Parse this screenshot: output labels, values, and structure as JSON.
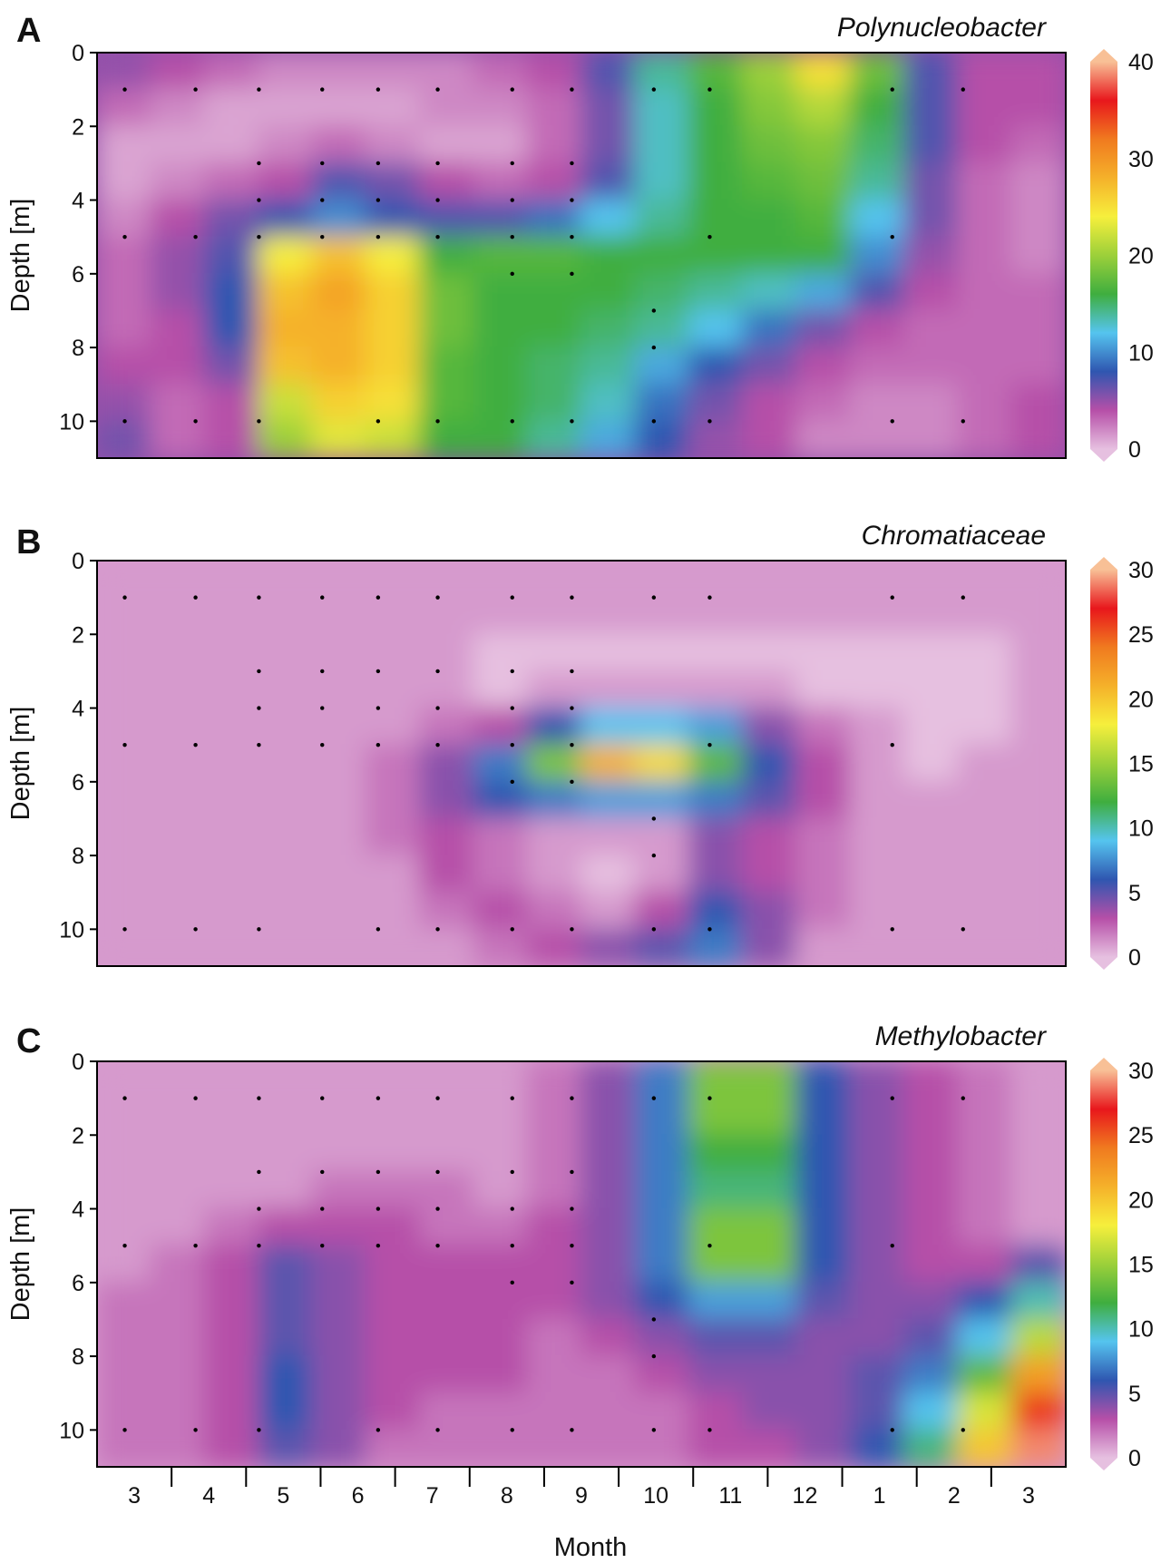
{
  "chart_data": {
    "type": "heatmap",
    "xlabel": "Month",
    "month_ticks": [
      "3",
      "4",
      "5",
      "6",
      "7",
      "8",
      "9",
      "10",
      "11",
      "12",
      "1",
      "2",
      "3"
    ],
    "sample_dates": [
      0.25,
      1.2,
      2.05,
      2.9,
      3.65,
      4.45,
      5.45,
      6.25,
      7.35,
      8.1,
      10.55,
      11.5
    ],
    "depth_range": [
      0,
      11
    ],
    "colormap": [
      "#e6c0e0",
      "#b64fa8",
      "#2f56b0",
      "#55c4ef",
      "#3fae3f",
      "#9cd03a",
      "#f6ef3c",
      "#f5b12a",
      "#f07a1f",
      "#e8171c",
      "#f8c096"
    ],
    "panels": [
      {
        "letter": "A",
        "organism": "Polynucleobacter",
        "ylabel": "Depth [m]",
        "y_ticks": [
          "0",
          "2",
          "4",
          "6",
          "8",
          "10"
        ],
        "colorbar_ticks": [
          "40",
          "30",
          "20",
          "10",
          "0"
        ],
        "vmax": 40,
        "sample_depths": [
          [
            1,
            5,
            10
          ],
          [
            1,
            5,
            10
          ],
          [
            1,
            3,
            4,
            5,
            10
          ],
          [
            1,
            3,
            4,
            5
          ],
          [
            1,
            3,
            4,
            5,
            10
          ],
          [
            1,
            3,
            4,
            5,
            10
          ],
          [
            1,
            3,
            4,
            5,
            6,
            10
          ],
          [
            1,
            3,
            4,
            5,
            6,
            10
          ],
          [
            1,
            7,
            8,
            10
          ],
          [
            1,
            5,
            10
          ],
          [
            1,
            5,
            10
          ],
          [
            1,
            10
          ]
        ],
        "grid": [
          [
            5,
            4,
            3,
            2,
            2,
            2,
            2,
            3,
            4,
            7,
            14,
            17,
            20,
            25,
            18,
            7,
            4,
            4
          ],
          [
            3,
            2,
            1,
            1,
            1,
            1,
            2,
            2,
            3,
            6,
            13,
            16,
            19,
            21,
            16,
            7,
            4,
            4
          ],
          [
            1,
            1,
            1,
            2,
            3,
            2,
            1,
            1,
            3,
            6,
            13,
            16,
            18,
            19,
            15,
            7,
            4,
            3
          ],
          [
            1,
            2,
            3,
            4,
            7,
            6,
            4,
            3,
            4,
            7,
            13,
            16,
            17,
            18,
            14,
            6,
            3,
            2
          ],
          [
            2,
            4,
            6,
            8,
            10,
            8,
            7,
            7,
            9,
            12,
            14,
            16,
            16,
            17,
            12,
            6,
            3,
            2
          ],
          [
            3,
            5,
            7,
            24,
            27,
            24,
            16,
            17,
            17,
            16,
            16,
            16,
            16,
            16,
            10,
            5,
            3,
            2
          ],
          [
            3,
            5,
            8,
            27,
            29,
            26,
            18,
            16,
            16,
            16,
            15,
            14,
            13,
            11,
            7,
            4,
            3,
            3
          ],
          [
            3,
            4,
            8,
            28,
            28,
            26,
            18,
            16,
            16,
            15,
            14,
            12,
            9,
            6,
            4,
            3,
            3,
            3
          ],
          [
            4,
            4,
            6,
            27,
            28,
            26,
            17,
            16,
            15,
            14,
            11,
            8,
            6,
            4,
            3,
            3,
            3,
            3
          ],
          [
            5,
            3,
            4,
            22,
            26,
            25,
            17,
            16,
            15,
            13,
            9,
            6,
            4,
            3,
            2,
            2,
            3,
            4
          ],
          [
            6,
            3,
            4,
            20,
            23,
            22,
            16,
            16,
            14,
            11,
            8,
            5,
            4,
            2,
            2,
            2,
            3,
            4
          ]
        ]
      },
      {
        "letter": "B",
        "organism": "Chromatiaceae",
        "ylabel": "Depth [m]",
        "y_ticks": [
          "0",
          "2",
          "4",
          "6",
          "8",
          "10"
        ],
        "colorbar_ticks": [
          "30",
          "25",
          "20",
          "15",
          "10",
          "5",
          "0"
        ],
        "vmax": 30,
        "sample_depths": [
          [
            1,
            5,
            10
          ],
          [
            1,
            5,
            10
          ],
          [
            1,
            3,
            4,
            5,
            10
          ],
          [
            1,
            3,
            4,
            5
          ],
          [
            1,
            3,
            4,
            5,
            10
          ],
          [
            1,
            3,
            4,
            5,
            10
          ],
          [
            1,
            3,
            4,
            5,
            6,
            10
          ],
          [
            1,
            3,
            4,
            5,
            6,
            10
          ],
          [
            1,
            7,
            8,
            10
          ],
          [
            1,
            5,
            10
          ],
          [
            1,
            5,
            10
          ],
          [
            1,
            10
          ]
        ],
        "grid": [
          [
            1,
            1,
            1,
            1,
            1,
            1,
            1,
            1,
            1,
            1,
            1,
            1,
            1,
            1,
            1,
            1,
            1,
            1
          ],
          [
            1,
            1,
            1,
            1,
            1,
            1,
            1,
            1,
            1,
            1,
            1,
            1,
            1,
            1,
            1,
            1,
            1,
            1
          ],
          [
            1,
            1,
            1,
            1,
            1,
            1,
            1,
            0,
            0,
            0,
            0,
            0,
            0,
            0,
            0,
            0,
            0,
            1
          ],
          [
            1,
            1,
            1,
            1,
            1,
            1,
            1,
            0,
            1,
            1,
            1,
            1,
            1,
            0,
            0,
            0,
            0,
            1
          ],
          [
            1,
            1,
            1,
            1,
            1,
            1,
            2,
            3,
            6,
            9,
            9,
            8,
            4,
            2,
            1,
            0,
            0,
            1
          ],
          [
            1,
            1,
            1,
            1,
            1,
            2,
            4,
            7,
            14,
            21,
            19,
            13,
            6,
            3,
            1,
            0,
            1,
            1
          ],
          [
            1,
            1,
            1,
            1,
            1,
            2,
            4,
            6,
            7,
            8,
            8,
            7,
            5,
            3,
            1,
            1,
            1,
            1
          ],
          [
            1,
            1,
            1,
            1,
            1,
            2,
            3,
            2,
            1,
            1,
            1,
            4,
            3,
            2,
            1,
            1,
            1,
            1
          ],
          [
            1,
            1,
            1,
            1,
            1,
            1,
            3,
            2,
            1,
            0,
            1,
            4,
            3,
            2,
            1,
            1,
            1,
            1
          ],
          [
            1,
            1,
            1,
            1,
            1,
            1,
            2,
            3,
            2,
            1,
            3,
            6,
            4,
            2,
            1,
            1,
            1,
            1
          ],
          [
            1,
            1,
            1,
            1,
            1,
            1,
            1,
            2,
            3,
            4,
            5,
            7,
            4,
            1,
            1,
            1,
            1,
            1
          ]
        ]
      },
      {
        "letter": "C",
        "organism": "Methylobacter",
        "ylabel": "Depth [m]",
        "y_ticks": [
          "0",
          "2",
          "4",
          "6",
          "8",
          "10"
        ],
        "colorbar_ticks": [
          "30",
          "25",
          "20",
          "15",
          "10",
          "5",
          "0"
        ],
        "vmax": 30,
        "sample_depths": [
          [
            1,
            5,
            10
          ],
          [
            1,
            5,
            10
          ],
          [
            1,
            3,
            4,
            5,
            10
          ],
          [
            1,
            3,
            4,
            5
          ],
          [
            1,
            3,
            4,
            5,
            10
          ],
          [
            1,
            3,
            4,
            5,
            10
          ],
          [
            1,
            3,
            4,
            5,
            6,
            10
          ],
          [
            1,
            3,
            4,
            5,
            6,
            10
          ],
          [
            1,
            7,
            8,
            10
          ],
          [
            1,
            5,
            10
          ],
          [
            1,
            5,
            10
          ],
          [
            1,
            10
          ]
        ],
        "grid": [
          [
            1,
            1,
            1,
            1,
            1,
            1,
            1,
            1,
            2,
            4,
            7,
            14,
            14,
            6,
            4,
            3,
            2,
            1
          ],
          [
            1,
            1,
            1,
            1,
            1,
            1,
            1,
            1,
            2,
            4,
            7,
            14,
            14,
            6,
            4,
            3,
            2,
            1
          ],
          [
            1,
            1,
            1,
            1,
            1,
            1,
            1,
            1,
            2,
            4,
            7,
            12,
            12,
            6,
            4,
            3,
            2,
            1
          ],
          [
            1,
            1,
            1,
            1,
            2,
            2,
            2,
            1,
            2,
            4,
            7,
            11,
            11,
            6,
            4,
            3,
            2,
            1
          ],
          [
            1,
            1,
            2,
            3,
            3,
            3,
            2,
            2,
            3,
            4,
            7,
            14,
            14,
            6,
            4,
            3,
            2,
            1
          ],
          [
            1,
            2,
            3,
            5,
            4,
            3,
            3,
            3,
            3,
            4,
            7,
            14,
            14,
            6,
            4,
            3,
            3,
            5
          ],
          [
            2,
            2,
            3,
            5,
            4,
            3,
            3,
            3,
            3,
            4,
            6,
            8,
            8,
            5,
            4,
            4,
            6,
            10
          ],
          [
            2,
            2,
            3,
            5,
            4,
            3,
            3,
            3,
            2,
            3,
            4,
            5,
            5,
            4,
            4,
            5,
            9,
            16
          ],
          [
            2,
            2,
            3,
            6,
            4,
            3,
            3,
            3,
            2,
            2,
            3,
            4,
            4,
            4,
            5,
            7,
            13,
            22
          ],
          [
            2,
            2,
            3,
            6,
            4,
            3,
            2,
            2,
            2,
            2,
            2,
            3,
            4,
            4,
            5,
            9,
            17,
            26
          ],
          [
            2,
            2,
            3,
            5,
            4,
            2,
            2,
            2,
            2,
            2,
            2,
            3,
            3,
            4,
            6,
            11,
            20,
            29
          ]
        ]
      }
    ]
  }
}
